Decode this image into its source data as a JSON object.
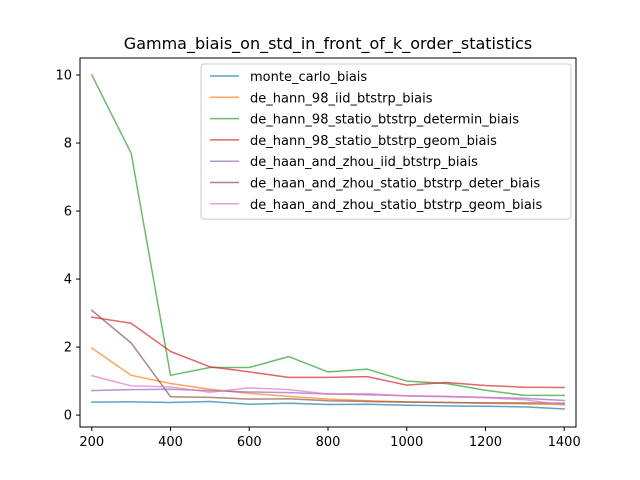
{
  "chart_data": {
    "type": "line",
    "title": "Gamma_biais_on_std_in_front_of_k_order_statistics",
    "xlabel": "",
    "ylabel": "",
    "xlim": [
      170,
      1430
    ],
    "ylim": [
      -0.35,
      10.5
    ],
    "xticks": [
      200,
      400,
      600,
      800,
      1000,
      1200,
      1400
    ],
    "yticks": [
      0,
      2,
      4,
      6,
      8,
      10
    ],
    "grid": false,
    "legend_position": "top-center",
    "x": [
      200,
      300,
      400,
      500,
      600,
      700,
      800,
      900,
      1000,
      1100,
      1200,
      1300,
      1400
    ],
    "series": [
      {
        "name": "monte_carlo_biais",
        "color": "#1f77b4",
        "values": [
          0.38,
          0.39,
          0.37,
          0.4,
          0.32,
          0.35,
          0.31,
          0.32,
          0.29,
          0.27,
          0.26,
          0.24,
          0.18
        ]
      },
      {
        "name": "de_hann_98_iid_btstrp_biais",
        "color": "#ff7f0e",
        "values": [
          1.97,
          1.17,
          0.93,
          0.76,
          0.64,
          0.55,
          0.47,
          0.42,
          0.39,
          0.37,
          0.35,
          0.33,
          0.31
        ]
      },
      {
        "name": "de_hann_98_statio_btstrp_determin_biais",
        "color": "#2ca02c",
        "values": [
          10.0,
          7.7,
          1.17,
          1.4,
          1.4,
          1.72,
          1.27,
          1.35,
          1.0,
          0.93,
          0.73,
          0.58,
          0.58
        ]
      },
      {
        "name": "de_hann_98_statio_btstrp_geom_biais",
        "color": "#d62728",
        "values": [
          2.88,
          2.7,
          1.87,
          1.42,
          1.27,
          1.11,
          1.11,
          1.13,
          0.88,
          0.96,
          0.87,
          0.82,
          0.81
        ]
      },
      {
        "name": "de_haan_and_zhou_iid_btstrp_biais",
        "color": "#9467bd",
        "values": [
          0.72,
          0.75,
          0.76,
          0.72,
          0.68,
          0.66,
          0.62,
          0.6,
          0.57,
          0.55,
          0.52,
          0.49,
          0.43
        ]
      },
      {
        "name": "de_haan_and_zhou_statio_btstrp_deter_biais",
        "color": "#8c564b",
        "values": [
          3.08,
          2.12,
          0.54,
          0.52,
          0.47,
          0.48,
          0.42,
          0.4,
          0.38,
          0.37,
          0.36,
          0.36,
          0.35
        ]
      },
      {
        "name": "de_haan_and_zhou_statio_btstrp_geom_biais",
        "color": "#e377c2",
        "values": [
          1.16,
          0.86,
          0.83,
          0.67,
          0.8,
          0.75,
          0.62,
          0.63,
          0.56,
          0.54,
          0.51,
          0.45,
          0.3
        ]
      }
    ]
  }
}
